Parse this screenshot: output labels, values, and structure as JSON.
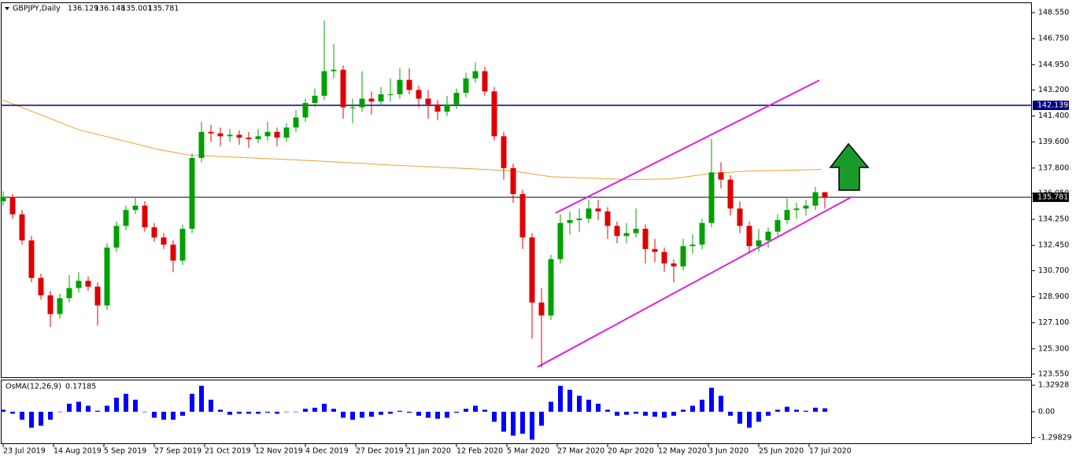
{
  "chart_data": {
    "type": "candlestick",
    "symbol": "GBPJPY,Daily",
    "up_color": "#00a000",
    "down_color": "#e00000",
    "xlim": [
      -0.75,
      326.75
    ],
    "ylim": [
      123.33,
      149.26
    ],
    "xticks": [
      {
        "value": 0,
        "label": "23 Jul 2019"
      },
      {
        "value": 16,
        "label": "14 Aug 2019"
      },
      {
        "value": 32,
        "label": "5 Sep 2019"
      },
      {
        "value": 48,
        "label": "27 Sep 2019"
      },
      {
        "value": 64,
        "label": "21 Oct 2019"
      },
      {
        "value": 80,
        "label": "12 Nov 2019"
      },
      {
        "value": 96,
        "label": "4 Dec 2019"
      },
      {
        "value": 112,
        "label": "27 Dec 2019"
      },
      {
        "value": 128,
        "label": "21 Jan 2020"
      },
      {
        "value": 144,
        "label": "12 Feb 2020"
      },
      {
        "value": 160,
        "label": "5 Mar 2020"
      },
      {
        "value": 176,
        "label": "27 Mar 2020"
      },
      {
        "value": 192,
        "label": "20 Apr 2020"
      },
      {
        "value": 208,
        "label": "12 May 2020"
      },
      {
        "value": 224,
        "label": "3 Jun 2020"
      },
      {
        "value": 240,
        "label": "25 Jun 2020"
      },
      {
        "value": 256,
        "label": "17 Jul 2020"
      }
    ],
    "yticks": [
      {
        "value": 148.55,
        "label": "148.550"
      },
      {
        "value": 146.75,
        "label": "146.750"
      },
      {
        "value": 144.95,
        "label": "144.950"
      },
      {
        "value": 143.2,
        "label": "143.200"
      },
      {
        "value": 141.4,
        "label": "141.400"
      },
      {
        "value": 139.6,
        "label": "139.600"
      },
      {
        "value": 137.8,
        "label": "137.800"
      },
      {
        "value": 136.05,
        "label": "136.050"
      },
      {
        "value": 134.25,
        "label": "134.250"
      },
      {
        "value": 132.45,
        "label": "132.450"
      },
      {
        "value": 130.7,
        "label": "130.700"
      },
      {
        "value": 128.9,
        "label": "128.900"
      },
      {
        "value": 127.1,
        "label": "127.100"
      },
      {
        "value": 125.3,
        "label": "125.300"
      },
      {
        "value": 123.55,
        "label": "123.550"
      }
    ],
    "x": [
      0,
      3,
      6,
      9,
      12,
      15,
      18,
      21,
      24,
      27,
      30,
      33,
      36,
      39,
      42,
      45,
      48,
      51,
      54,
      57,
      60,
      63,
      66,
      69,
      72,
      75,
      78,
      81,
      84,
      87,
      90,
      93,
      96,
      99,
      102,
      105,
      108,
      111,
      114,
      117,
      120,
      123,
      126,
      129,
      132,
      135,
      138,
      141,
      144,
      147,
      150,
      153,
      156,
      159,
      162,
      165,
      168,
      171,
      174,
      177,
      180,
      183,
      186,
      189,
      192,
      195,
      198,
      201,
      204,
      207,
      210,
      213,
      216,
      219,
      222,
      225,
      228,
      231,
      234,
      237,
      240,
      243,
      246,
      249,
      252,
      255,
      258,
      261
    ],
    "ohlc": [
      [
        135.5,
        136.2,
        135.2,
        135.8
      ],
      [
        135.8,
        136.0,
        134.3,
        134.6
      ],
      [
        134.6,
        134.9,
        132.5,
        132.8
      ],
      [
        132.8,
        133.1,
        129.9,
        130.2
      ],
      [
        130.2,
        130.5,
        128.7,
        129.0
      ],
      [
        129.0,
        129.3,
        126.8,
        127.7
      ],
      [
        127.7,
        129.1,
        127.4,
        128.8
      ],
      [
        128.8,
        130.4,
        128.5,
        129.5
      ],
      [
        129.5,
        130.6,
        129.2,
        130.0
      ],
      [
        130.0,
        130.3,
        129.3,
        129.6
      ],
      [
        129.6,
        129.9,
        126.9,
        128.3
      ],
      [
        128.3,
        132.6,
        128.0,
        132.3
      ],
      [
        132.3,
        134.1,
        132.0,
        133.8
      ],
      [
        133.8,
        135.2,
        133.5,
        134.9
      ],
      [
        134.9,
        135.8,
        134.6,
        135.2
      ],
      [
        135.2,
        135.5,
        133.4,
        133.7
      ],
      [
        133.7,
        134.0,
        132.7,
        133.0
      ],
      [
        133.0,
        133.3,
        132.2,
        132.5
      ],
      [
        132.5,
        132.8,
        130.6,
        131.4
      ],
      [
        131.4,
        133.9,
        131.1,
        133.6
      ],
      [
        133.6,
        138.8,
        133.3,
        138.5
      ],
      [
        138.5,
        141.0,
        138.2,
        140.3
      ],
      [
        140.3,
        140.8,
        139.6,
        140.2
      ],
      [
        140.2,
        140.6,
        139.3,
        140.0
      ],
      [
        140.0,
        140.5,
        139.6,
        140.1
      ],
      [
        140.1,
        140.4,
        139.4,
        139.9
      ],
      [
        139.9,
        140.3,
        139.2,
        139.8
      ],
      [
        139.8,
        140.5,
        139.5,
        140.0
      ],
      [
        140.0,
        141.0,
        139.7,
        140.3
      ],
      [
        140.3,
        140.6,
        139.3,
        139.9
      ],
      [
        139.9,
        140.9,
        139.6,
        140.6
      ],
      [
        140.6,
        141.8,
        140.3,
        141.3
      ],
      [
        141.3,
        142.6,
        141.0,
        142.3
      ],
      [
        142.3,
        143.3,
        142.0,
        142.8
      ],
      [
        142.8,
        148.0,
        142.5,
        144.5
      ],
      [
        144.5,
        146.4,
        144.0,
        144.6
      ],
      [
        144.6,
        144.9,
        141.2,
        142.0
      ],
      [
        142.0,
        142.6,
        140.9,
        142.0
      ],
      [
        142.0,
        144.5,
        141.7,
        142.6
      ],
      [
        142.6,
        143.1,
        141.5,
        142.4
      ],
      [
        142.4,
        143.4,
        142.1,
        142.9
      ],
      [
        142.9,
        144.0,
        142.4,
        142.9
      ],
      [
        142.9,
        144.7,
        142.6,
        143.9
      ],
      [
        143.9,
        144.7,
        142.9,
        143.2
      ],
      [
        143.2,
        143.5,
        142.0,
        142.6
      ],
      [
        142.6,
        143.2,
        141.2,
        142.2
      ],
      [
        142.2,
        142.5,
        141.1,
        141.7
      ],
      [
        141.7,
        142.8,
        141.4,
        142.2
      ],
      [
        142.2,
        143.3,
        141.9,
        143.0
      ],
      [
        143.0,
        144.4,
        142.7,
        144.0
      ],
      [
        144.0,
        145.1,
        143.7,
        144.5
      ],
      [
        144.5,
        144.8,
        142.8,
        143.1
      ],
      [
        143.1,
        143.4,
        139.7,
        140.0
      ],
      [
        140.0,
        140.3,
        137.0,
        137.8
      ],
      [
        137.8,
        138.1,
        135.4,
        136.0
      ],
      [
        136.0,
        136.3,
        132.2,
        133.0
      ],
      [
        133.0,
        133.3,
        126.0,
        128.5
      ],
      [
        128.5,
        129.5,
        124.0,
        127.6
      ],
      [
        127.6,
        131.8,
        127.3,
        131.5
      ],
      [
        131.5,
        134.6,
        131.2,
        134.0
      ],
      [
        134.0,
        134.8,
        133.2,
        134.2
      ],
      [
        134.2,
        135.0,
        133.4,
        134.3
      ],
      [
        134.3,
        135.6,
        134.0,
        135.0
      ],
      [
        135.0,
        135.6,
        134.2,
        134.8
      ],
      [
        134.8,
        135.1,
        132.9,
        133.8
      ],
      [
        133.8,
        134.1,
        132.6,
        133.1
      ],
      [
        133.1,
        134.0,
        132.6,
        133.3
      ],
      [
        133.3,
        135.0,
        133.0,
        133.6
      ],
      [
        133.6,
        133.9,
        131.2,
        132.2
      ],
      [
        132.2,
        132.9,
        131.3,
        132.0
      ],
      [
        132.0,
        132.3,
        130.6,
        131.2
      ],
      [
        131.2,
        131.5,
        129.9,
        131.0
      ],
      [
        131.0,
        132.9,
        130.7,
        132.4
      ],
      [
        132.4,
        133.2,
        131.9,
        132.5
      ],
      [
        132.5,
        134.3,
        132.2,
        134.0
      ],
      [
        134.0,
        139.8,
        133.7,
        137.5
      ],
      [
        137.5,
        138.2,
        136.4,
        137.0
      ],
      [
        137.0,
        137.3,
        134.5,
        135.0
      ],
      [
        135.0,
        135.5,
        133.3,
        133.8
      ],
      [
        133.8,
        134.1,
        131.9,
        132.4
      ],
      [
        132.4,
        133.6,
        132.0,
        132.8
      ],
      [
        132.8,
        133.7,
        132.3,
        133.4
      ],
      [
        133.4,
        134.6,
        133.1,
        134.2
      ],
      [
        134.2,
        135.7,
        133.9,
        134.9
      ],
      [
        134.9,
        135.4,
        134.3,
        135.0
      ],
      [
        135.0,
        135.6,
        134.5,
        135.2
      ],
      [
        135.2,
        136.5,
        134.9,
        136.129
      ],
      [
        136.129,
        136.148,
        135.001,
        135.781
      ]
    ],
    "ma": {
      "color": "#f0a030",
      "x": [
        0,
        24,
        49,
        59,
        74,
        99,
        124,
        149,
        162,
        174,
        199,
        212,
        224,
        237,
        249,
        260
      ],
      "values": [
        142.5,
        140.45,
        139.1,
        138.7,
        138.55,
        138.3,
        138.0,
        137.75,
        137.6,
        137.2,
        137.0,
        137.05,
        137.4,
        137.6,
        137.65,
        137.7
      ]
    },
    "trendlines": {
      "color": "#e020e0",
      "lines": [
        {
          "x": [
            175.5,
            259.25
          ],
          "values": [
            134.69,
            143.87
          ]
        },
        {
          "x": [
            169.75,
            269.75
          ],
          "values": [
            124.04,
            135.83
          ]
        }
      ]
    },
    "hlines": [
      {
        "value": 142.139,
        "color": "#000080"
      }
    ],
    "price_line_color": "#000000",
    "osma": {
      "title": "OsMA(12,26,9)",
      "color": "#0000ff",
      "ylim": [
        -1.62,
        1.61
      ],
      "yticks": [
        1.32928,
        {
          "value": 0,
          "label": "0.00"
        },
        -1.29829
      ],
      "values": [
        0.1,
        -0.1,
        -0.4,
        -0.8,
        -0.7,
        -0.4,
        0,
        0.4,
        0.5,
        0.3,
        0.05,
        0.3,
        0.7,
        0.9,
        0.6,
        0,
        -0.3,
        -0.4,
        -0.4,
        -0.2,
        0.9,
        1.3,
        0.6,
        0.1,
        -0.15,
        -0.1,
        -0.1,
        -0.1,
        -0.05,
        -0.1,
        0,
        0,
        0.15,
        0.2,
        0.4,
        0.15,
        -0.3,
        -0.4,
        -0.3,
        -0.25,
        -0.15,
        -0.1,
        0.05,
        -0.05,
        -0.2,
        -0.3,
        -0.35,
        -0.3,
        -0.05,
        0.15,
        0.3,
        0.1,
        -0.5,
        -1.0,
        -1.2,
        -1.1,
        -1.4,
        -0.7,
        0.5,
        1.3,
        1.1,
        0.8,
        0.6,
        0.4,
        0.1,
        -0.2,
        -0.15,
        -0.1,
        -0.2,
        -0.25,
        -0.3,
        -0.2,
        0.1,
        0.3,
        0.6,
        1.2,
        0.8,
        -0.2,
        -0.6,
        -0.8,
        -0.5,
        -0.2,
        0.1,
        0.25,
        0.1,
        0.05,
        0.2,
        0.17185
      ]
    }
  }
}
